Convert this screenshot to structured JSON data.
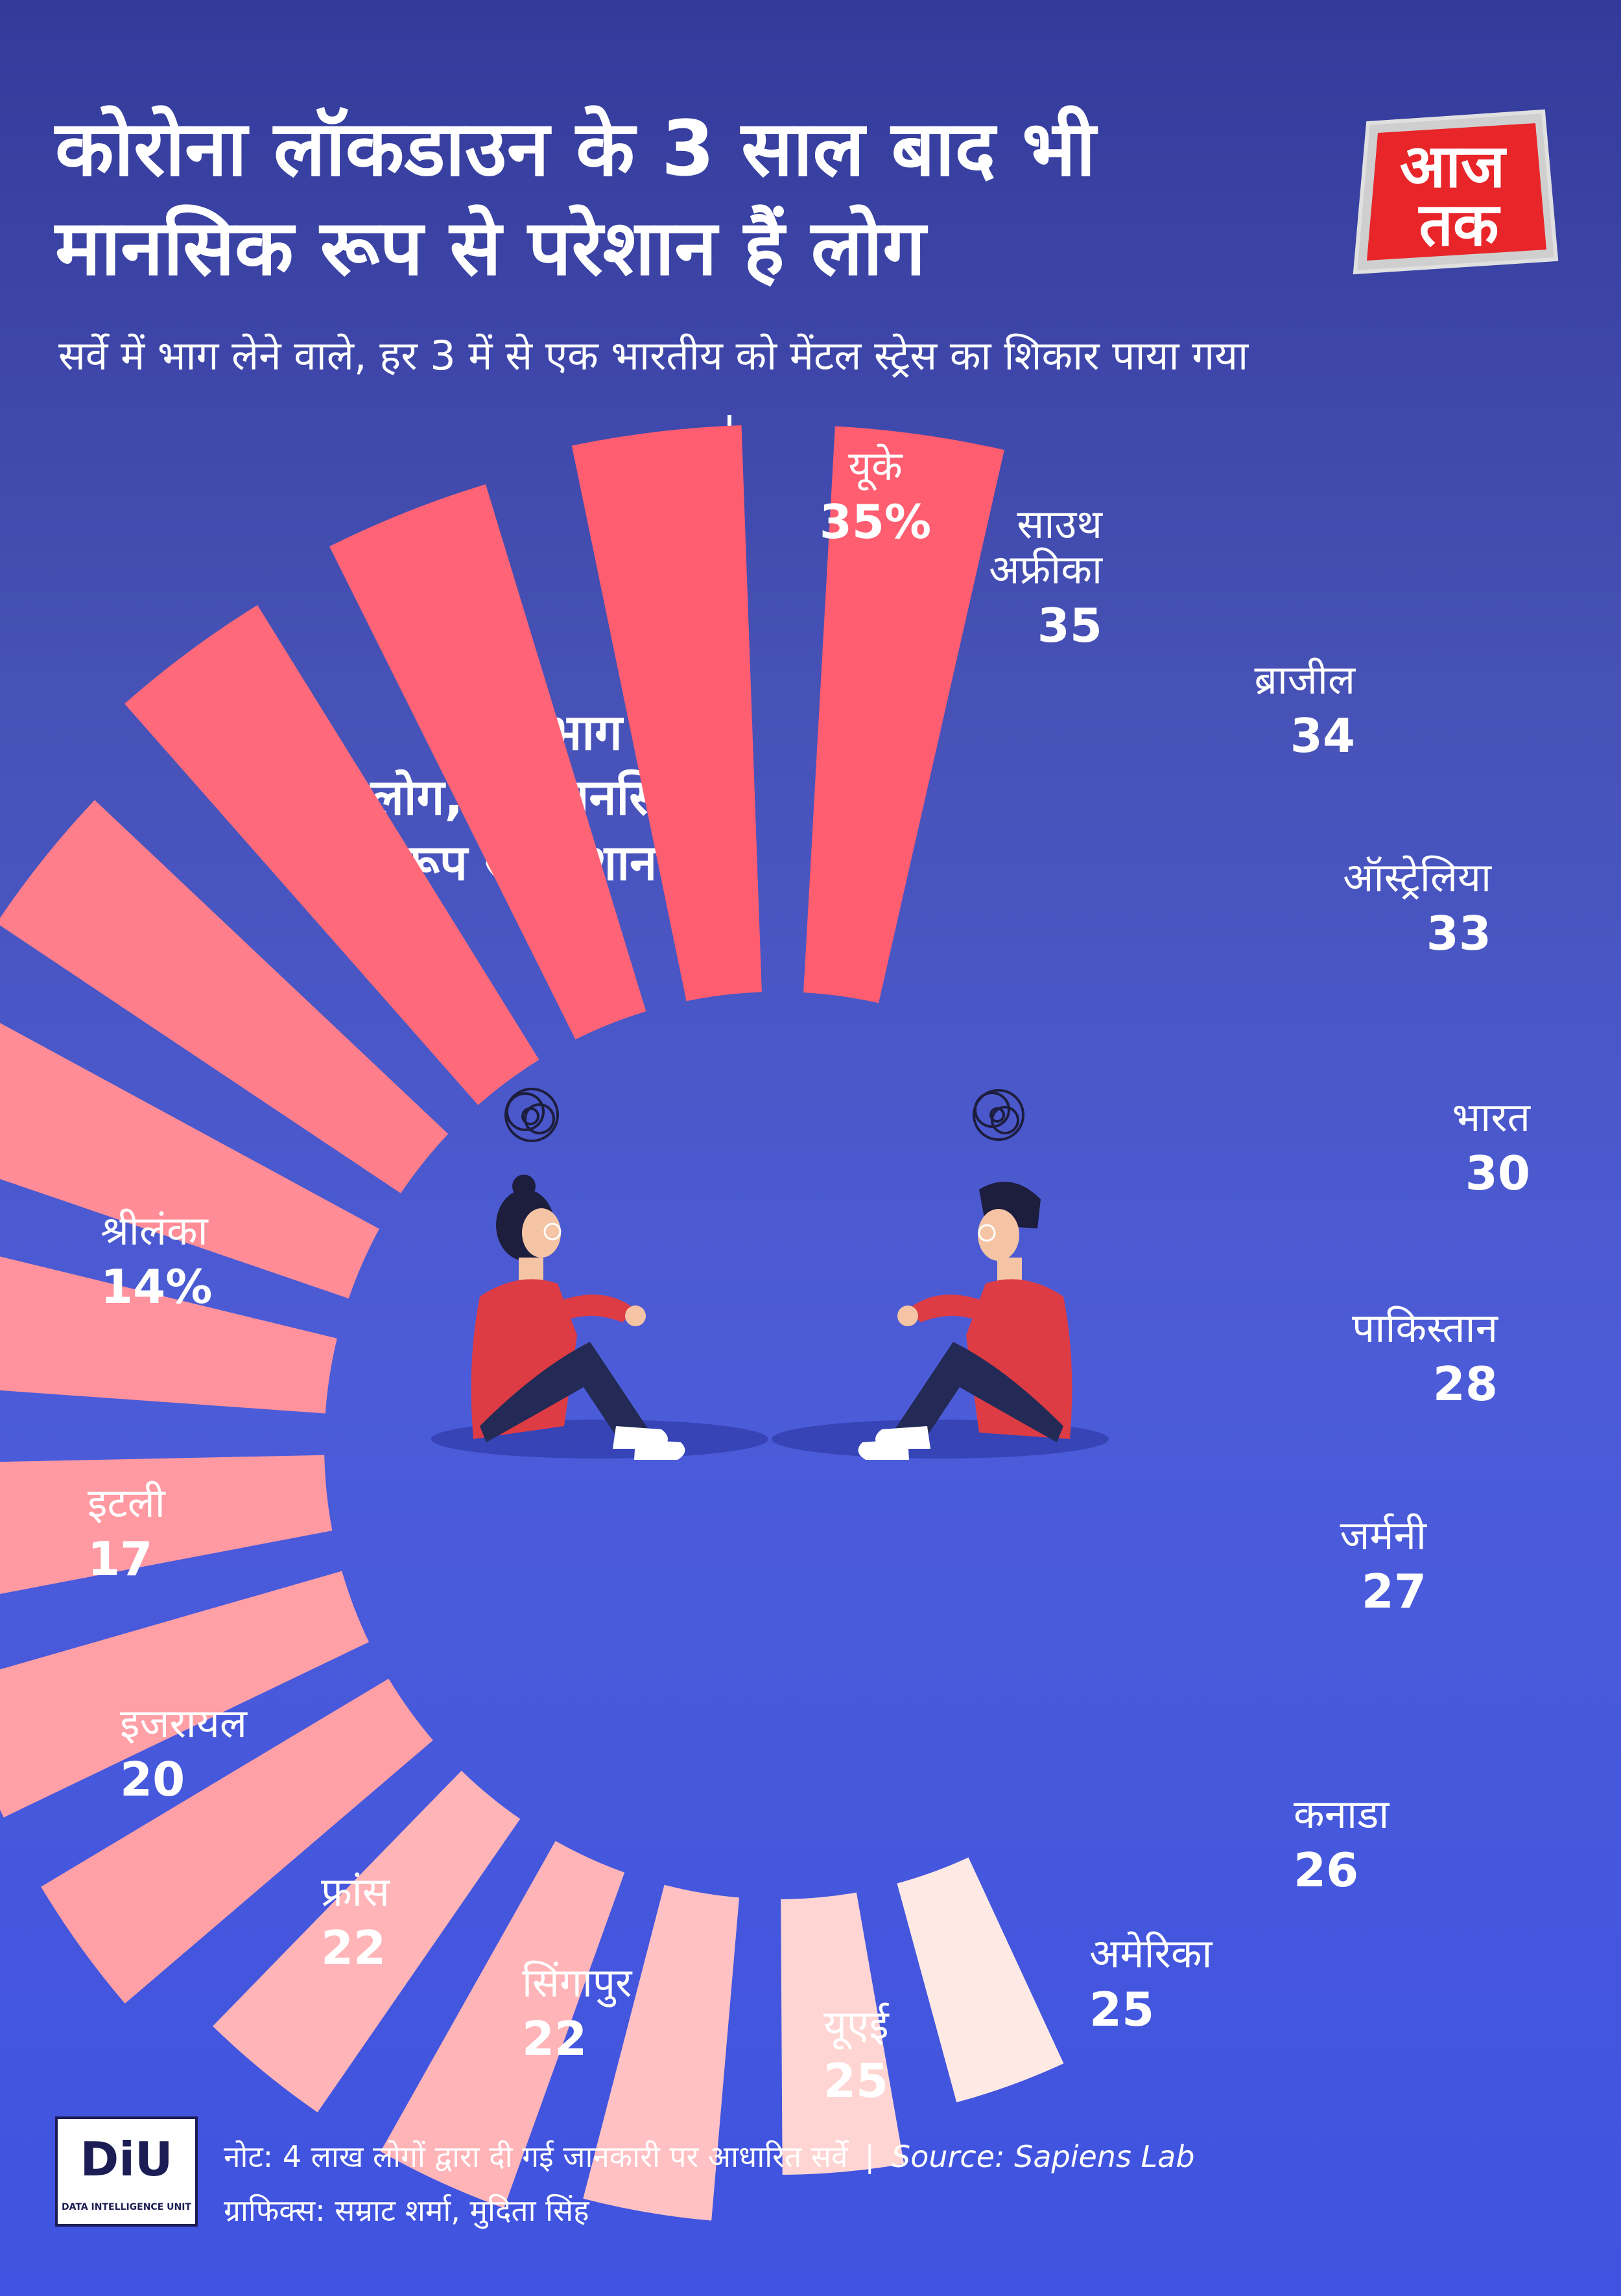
{
  "title": {
    "line1": "कोरोना लॉकडाउन के 3 साल बाद भी",
    "line2": "मानसिक रूप से परेशान हैं लोग"
  },
  "subtitle": "सर्वे में भाग लेने वाले, हर 3 में से एक भारतीय को मेंटल स्ट्रेस का शिकार पाया गया",
  "logo": {
    "line1": "आज",
    "line2": "तक",
    "colors": {
      "bg": "#e8262a",
      "text": "#ffffff",
      "frame": "#d8d8d8"
    }
  },
  "chart_label": [
    "सर्वे में भाग लेने",
    "वाले लोग, जो मानसिक",
    "रूप से परेशान हैं"
  ],
  "colors": {
    "bar_high": "#ff5d70",
    "bar_low": "#ffe9e4",
    "background_top": "#333a9a",
    "background_bottom": "#3f53e0",
    "shirt": "#dd3c45",
    "pants": "#232a55"
  },
  "chart_data": {
    "type": "bar",
    "layout": "radial",
    "title": "",
    "unit": "%",
    "categories": [
      "यूके",
      "साउथ अफ्रीका",
      "ब्राजील",
      "ऑस्ट्रेलिया",
      "भारत",
      "पाकिस्तान",
      "जर्मनी",
      "कनाडा",
      "अमेरिका",
      "यूएई",
      "सिंगापुर",
      "फ्रांस",
      "इजरायल",
      "इटली",
      "श्रीलंका"
    ],
    "values": [
      35,
      35,
      34,
      33,
      30,
      28,
      27,
      26,
      25,
      25,
      22,
      22,
      20,
      17,
      14
    ],
    "value_labels": [
      "35%",
      "35",
      "34",
      "33",
      "30",
      "28",
      "27",
      "26",
      "25",
      "25",
      "22",
      "22",
      "20",
      "17",
      "14%"
    ]
  },
  "footer": {
    "note": "नोट: 4 लाख लोगों द्वारा दी गई जानकारी पर आधारित सर्वे",
    "separator": "|",
    "source": "Source: Sapiens Lab",
    "credits": "ग्राफिक्स: सम्राट शर्मा, मुदिता सिंह"
  },
  "diu_logo": {
    "text": "DiU",
    "subtitle": "DATA INTELLIGENCE UNIT"
  }
}
